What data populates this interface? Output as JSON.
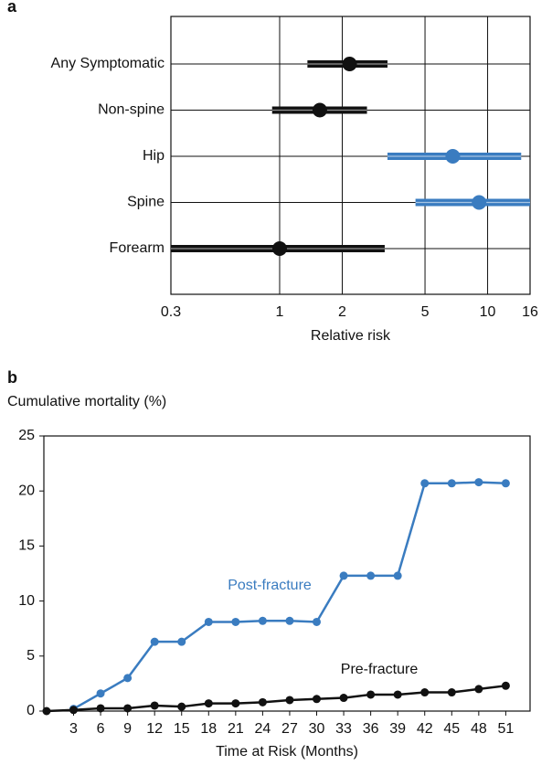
{
  "chart_data": [
    {
      "type": "forest",
      "panel": "a",
      "x_label": "Relative risk",
      "log_x": true,
      "categories": [
        "Any Symptomatic",
        "Non-spine",
        "Hip",
        "Spine",
        "Forearm"
      ],
      "values": [
        2.17,
        1.56,
        6.8,
        9.1,
        1.0
      ],
      "ci_lower": [
        1.36,
        0.92,
        3.3,
        4.5,
        0.3
      ],
      "ci_upper": [
        3.3,
        2.63,
        14.5,
        16,
        3.2
      ],
      "colors": [
        "#111111",
        "#111111",
        "#3a7cc0",
        "#3a7cc0",
        "#111111"
      ],
      "xlim": [
        0.3,
        16
      ],
      "xticks": [
        0.3,
        1,
        2,
        5,
        10,
        16
      ],
      "grid": true
    },
    {
      "type": "line",
      "panel": "b",
      "y_label": "Cumulative mortality (%)",
      "x_label": "Time at Risk (Months)",
      "x": [
        0,
        3,
        6,
        9,
        12,
        15,
        18,
        21,
        24,
        27,
        30,
        33,
        36,
        39,
        42,
        45,
        48,
        51
      ],
      "series": [
        {
          "name": "Post-fracture",
          "color": "#3a7cc0",
          "values": [
            null,
            0.2,
            1.6,
            3.0,
            6.3,
            6.3,
            8.1,
            8.1,
            8.2,
            8.2,
            8.1,
            12.3,
            12.3,
            12.3,
            20.7,
            20.7,
            20.8,
            20.7
          ]
        },
        {
          "name": "Pre-fracture",
          "color": "#111111",
          "values": [
            0.0,
            0.1,
            0.25,
            0.25,
            0.5,
            0.4,
            0.7,
            0.7,
            0.8,
            1.0,
            1.1,
            1.2,
            1.5,
            1.5,
            1.7,
            1.7,
            2.0,
            2.3
          ]
        }
      ],
      "xlim": [
        -0.3,
        53.7
      ],
      "ylim": [
        0,
        25
      ],
      "xticks": [
        3,
        6,
        9,
        12,
        15,
        18,
        21,
        24,
        27,
        30,
        33,
        36,
        39,
        42,
        45,
        48,
        51
      ],
      "yticks": [
        0,
        5,
        10,
        15,
        20,
        25
      ]
    }
  ]
}
